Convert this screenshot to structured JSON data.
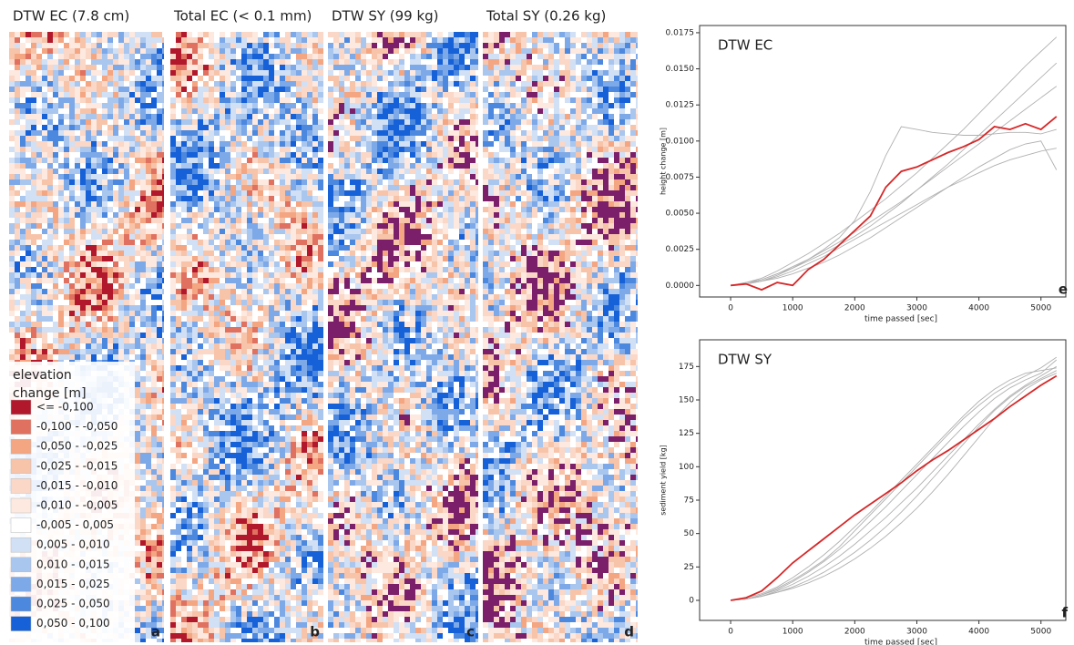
{
  "maps": {
    "panels": [
      {
        "title": "DTW EC (7.8 cm)",
        "letter": "a"
      },
      {
        "title": "Total EC (< 0.1 mm)",
        "letter": "b"
      },
      {
        "title": "DTW SY (99 kg)",
        "letter": "c"
      },
      {
        "title": "Total SY (0.26 kg)",
        "letter": "d"
      }
    ],
    "legend": {
      "title": "elevation change [m]",
      "items": [
        {
          "label": "<= -0,100",
          "color": "#b2182b"
        },
        {
          "label": "-0,100 - -0,050",
          "color": "#e07060"
        },
        {
          "label": "-0,050 - -0,025",
          "color": "#f4a582"
        },
        {
          "label": "-0,025 - -0,015",
          "color": "#f7c4aa"
        },
        {
          "label": "-0,015 - -0,010",
          "color": "#fad7c6"
        },
        {
          "label": "-0,010 - -0,005",
          "color": "#fde9df"
        },
        {
          "label": "-0,005 - 0,005",
          "color": "#ffffff"
        },
        {
          "label": "0,005 - 0,010",
          "color": "#d1e0f5"
        },
        {
          "label": "0,010 - 0,015",
          "color": "#a9c6ef"
        },
        {
          "label": "0,015 - 0,025",
          "color": "#7ea9e8"
        },
        {
          "label": "0,025 - 0,050",
          "color": "#4d88df"
        },
        {
          "label": "0,050 - 0,100",
          "color": "#1660d8"
        }
      ]
    }
  },
  "chart_data": [
    {
      "type": "line",
      "title": "DTW EC",
      "annotation": "e",
      "x_label": "time passed [sec]",
      "y_label": "height change [m]",
      "x": [
        0,
        250,
        500,
        750,
        1000,
        1250,
        1500,
        1750,
        2000,
        2250,
        2500,
        2750,
        3000,
        3250,
        3500,
        3750,
        4000,
        4250,
        4500,
        4750,
        5000,
        5250
      ],
      "xlim": [
        -500,
        5400
      ],
      "xticks": [
        0,
        1000,
        2000,
        3000,
        4000,
        5000
      ],
      "ylim": [
        -0.0008,
        0.018
      ],
      "yticks": [
        {
          "value": 0,
          "label": "0.0000"
        },
        {
          "value": 0.0025,
          "label": "0.0025"
        },
        {
          "value": 0.005,
          "label": "0.0050"
        },
        {
          "value": 0.0075,
          "label": "0.0075"
        },
        {
          "value": 0.01,
          "label": "0.0100"
        },
        {
          "value": 0.0125,
          "label": "0.0125"
        },
        {
          "value": 0.015,
          "label": "0.0150"
        },
        {
          "value": 0.0175,
          "label": "0.0175"
        }
      ],
      "series": [
        {
          "color": "#b0b0b0",
          "values": [
            0,
            0.0002,
            0.0005,
            0.001,
            0.0016,
            0.0022,
            0.0029,
            0.0036,
            0.0044,
            0.0052,
            0.006,
            0.0069,
            0.0078,
            0.0088,
            0.0098,
            0.0108,
            0.0119,
            0.013,
            0.0141,
            0.0152,
            0.0162,
            0.0172
          ]
        },
        {
          "color": "#b0b0b0",
          "values": [
            0,
            0.0001,
            0.0004,
            0.0008,
            0.0013,
            0.0018,
            0.0024,
            0.003,
            0.0037,
            0.0044,
            0.0051,
            0.0058,
            0.0066,
            0.0074,
            0.0082,
            0.009,
            0.0098,
            0.0106,
            0.0114,
            0.0122,
            0.013,
            0.0138
          ]
        },
        {
          "color": "#b0b0b0",
          "values": [
            0,
            0.0001,
            0.0003,
            0.0006,
            0.001,
            0.0015,
            0.002,
            0.0026,
            0.0032,
            0.0038,
            0.0044,
            0.005,
            0.0056,
            0.0062,
            0.0068,
            0.0073,
            0.0078,
            0.0083,
            0.0087,
            0.009,
            0.0093,
            0.0095
          ]
        },
        {
          "color": "#b0b0b0",
          "values": [
            0,
            0.0001,
            0.0003,
            0.0007,
            0.0012,
            0.0018,
            0.0025,
            0.0033,
            0.0045,
            0.0065,
            0.009,
            0.011,
            0.0108,
            0.0106,
            0.0105,
            0.0104,
            0.0104,
            0.0105,
            0.0106,
            0.0106,
            0.0105,
            0.0108
          ]
        },
        {
          "color": "#b0b0b0",
          "values": [
            0,
            0.0002,
            0.0004,
            0.0008,
            0.0012,
            0.0017,
            0.0022,
            0.0028,
            0.0034,
            0.0041,
            0.0049,
            0.0057,
            0.0066,
            0.0075,
            0.0084,
            0.0094,
            0.0104,
            0.0114,
            0.0124,
            0.0134,
            0.0144,
            0.0154
          ]
        },
        {
          "color": "#b0b0b0",
          "values": [
            0,
            0.0001,
            0.0003,
            0.0005,
            0.0008,
            0.0012,
            0.0016,
            0.0021,
            0.0027,
            0.0033,
            0.004,
            0.0047,
            0.0054,
            0.0061,
            0.0068,
            0.0075,
            0.0082,
            0.0088,
            0.0094,
            0.0098,
            0.01,
            0.008
          ]
        },
        {
          "color": "#d62728",
          "values": [
            0,
            0.0001,
            -0.0003,
            0.0002,
            0,
            0.0011,
            0.0018,
            0.0028,
            0.0038,
            0.0048,
            0.0068,
            0.0079,
            0.0082,
            0.0087,
            0.0092,
            0.0096,
            0.0101,
            0.011,
            0.0108,
            0.0112,
            0.0108,
            0.0117
          ]
        }
      ]
    },
    {
      "type": "line",
      "title": "DTW SY",
      "annotation": "f",
      "x_label": "time passed [sec]",
      "y_label": "sediment yield [kg]",
      "x": [
        0,
        250,
        500,
        750,
        1000,
        1250,
        1500,
        1750,
        2000,
        2250,
        2500,
        2750,
        3000,
        3250,
        3500,
        3750,
        4000,
        4250,
        4500,
        4750,
        5000,
        5250
      ],
      "xlim": [
        -500,
        5400
      ],
      "xticks": [
        0,
        1000,
        2000,
        3000,
        4000,
        5000
      ],
      "ylim": [
        -15,
        195
      ],
      "yticks": [
        0,
        25,
        50,
        75,
        100,
        125,
        150,
        175
      ],
      "series": [
        {
          "color": "#b0b0b0",
          "values": [
            0,
            1,
            4,
            9,
            15,
            22,
            30,
            40,
            52,
            64,
            76,
            88,
            100,
            112,
            124,
            136,
            146,
            155,
            162,
            168,
            174,
            182
          ]
        },
        {
          "color": "#b0b0b0",
          "values": [
            0,
            1,
            3,
            7,
            12,
            18,
            25,
            33,
            42,
            52,
            62,
            73,
            84,
            96,
            108,
            120,
            132,
            143,
            153,
            161,
            168,
            175
          ]
        },
        {
          "color": "#b0b0b0",
          "values": [
            0,
            1,
            3,
            6,
            10,
            15,
            21,
            28,
            36,
            45,
            55,
            66,
            78,
            91,
            104,
            117,
            130,
            142,
            152,
            160,
            166,
            172
          ]
        },
        {
          "color": "#b0b0b0",
          "values": [
            0,
            2,
            5,
            10,
            17,
            25,
            34,
            44,
            55,
            66,
            78,
            90,
            102,
            114,
            126,
            138,
            149,
            158,
            165,
            170,
            172,
            174
          ]
        },
        {
          "color": "#b0b0b0",
          "values": [
            0,
            1,
            3,
            6,
            9,
            13,
            18,
            24,
            31,
            39,
            48,
            58,
            69,
            81,
            94,
            108,
            122,
            136,
            148,
            158,
            165,
            170
          ]
        },
        {
          "color": "#b0b0b0",
          "values": [
            0,
            1,
            4,
            8,
            14,
            21,
            29,
            38,
            48,
            59,
            70,
            82,
            94,
            106,
            118,
            130,
            141,
            151,
            159,
            165,
            170,
            180
          ]
        },
        {
          "color": "#d62728",
          "values": [
            0,
            2,
            7,
            17,
            28,
            37,
            46,
            55,
            64,
            72,
            80,
            88,
            97,
            105,
            112,
            120,
            128,
            136,
            145,
            153,
            161,
            168
          ]
        }
      ]
    }
  ]
}
